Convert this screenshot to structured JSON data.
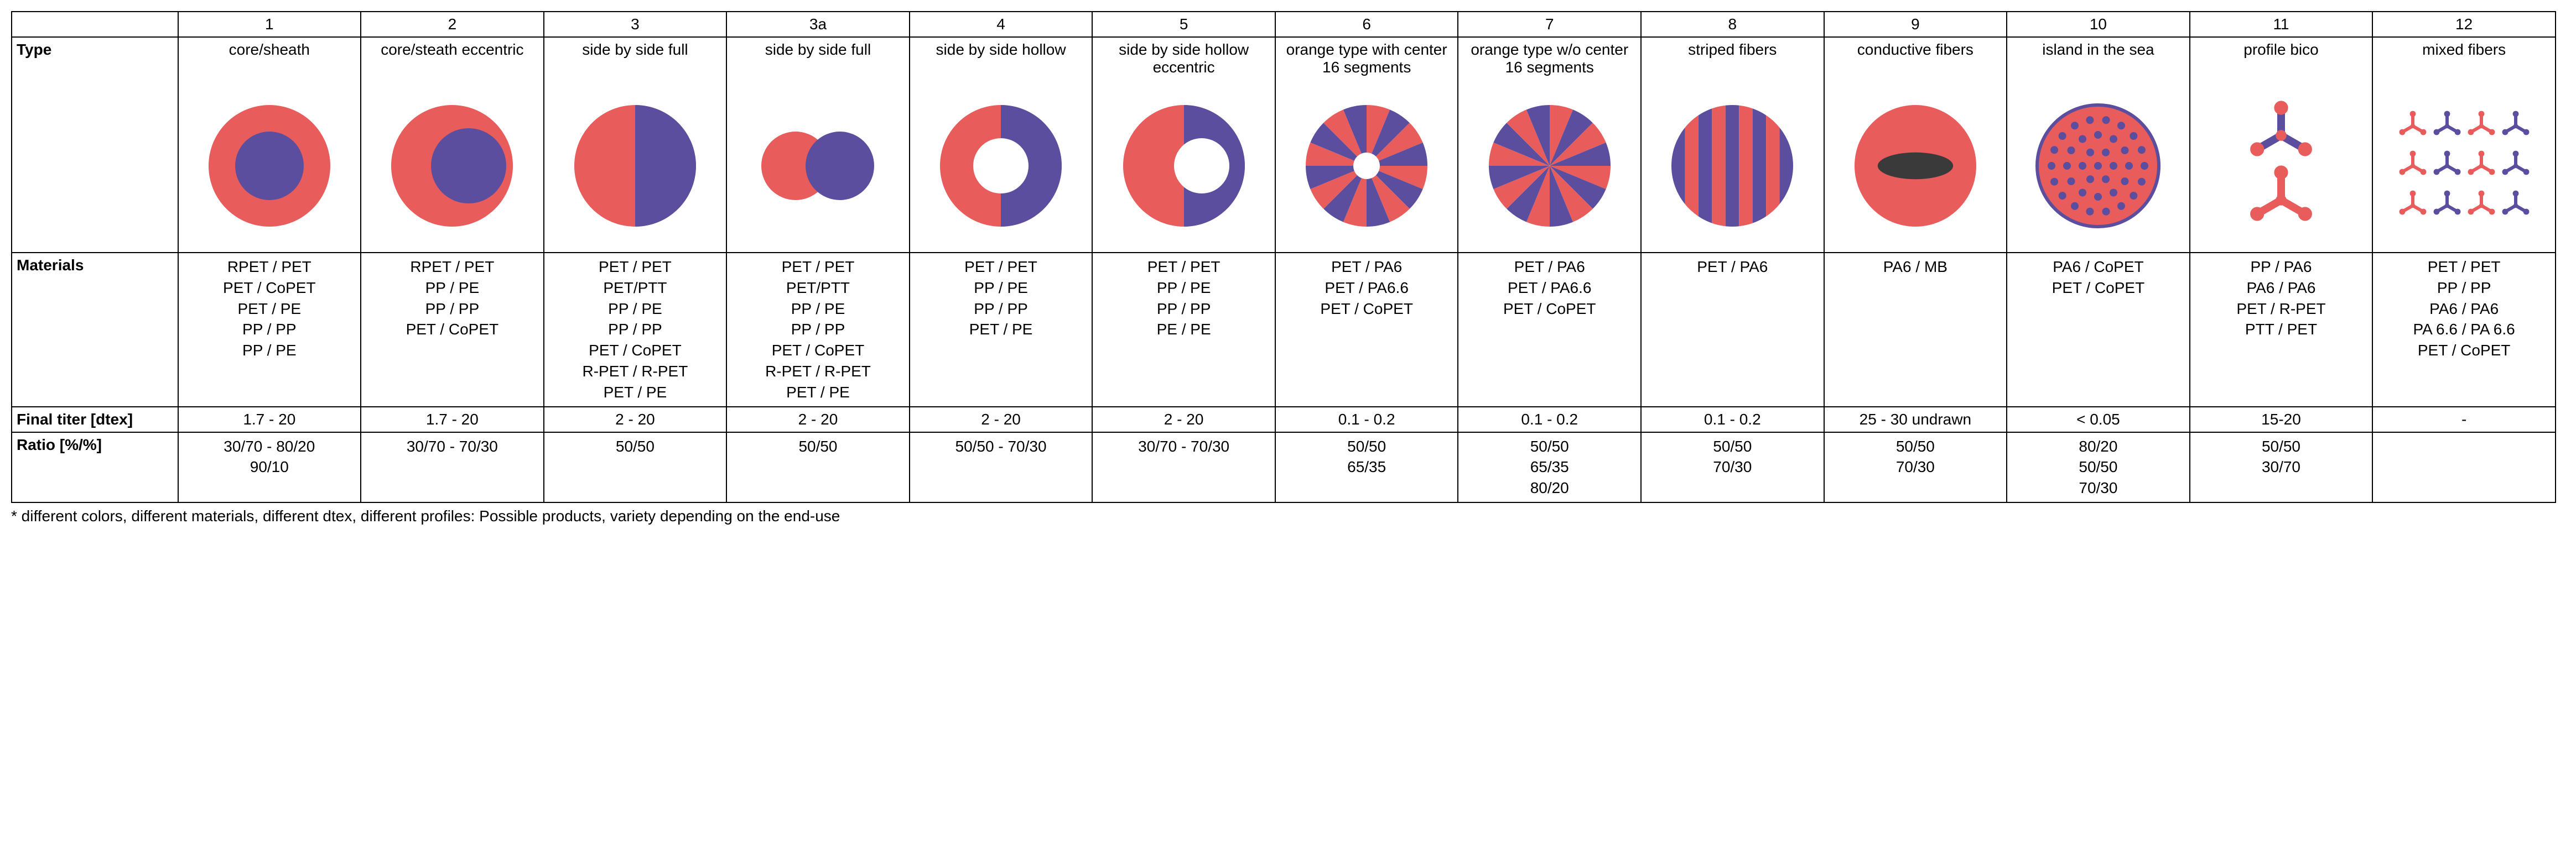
{
  "colors": {
    "red": "#e85c5c",
    "blue": "#5b4e9e",
    "dark": "#3a3a3a",
    "white": "#ffffff",
    "border": "#000000"
  },
  "row_labels": {
    "type": "Type",
    "materials": "Materials",
    "titer": "Final titer [dtex]",
    "ratio": "Ratio [%/%]"
  },
  "footnote": "* different colors, different materials, different dtex, different profiles: Possible products, variety depending on the end-use",
  "columns": [
    {
      "num": "1",
      "type": "core/sheath",
      "icon": "core_sheath",
      "materials": [
        "RPET / PET",
        "PET / CoPET",
        "PET / PE",
        "PP / PP",
        "PP / PE"
      ],
      "titer": "1.7 - 20",
      "ratio": [
        "30/70 - 80/20",
        "90/10"
      ]
    },
    {
      "num": "2",
      "type": "core/steath eccentric",
      "icon": "core_sheath_ecc",
      "materials": [
        "RPET / PET",
        "PP / PE",
        "PP / PP",
        "PET / CoPET"
      ],
      "titer": "1.7 - 20",
      "ratio": [
        "30/70 - 70/30"
      ]
    },
    {
      "num": "3",
      "type": "side by side full",
      "icon": "sbs_full",
      "materials": [
        "PET / PET",
        "PET/PTT",
        "PP / PE",
        "PP / PP",
        "PET / CoPET",
        "R-PET / R-PET",
        "PET / PE"
      ],
      "titer": "2 - 20",
      "ratio": [
        "50/50"
      ]
    },
    {
      "num": "3a",
      "type": "side by side full",
      "icon": "sbs_full_small",
      "materials": [
        "PET / PET",
        "PET/PTT",
        "PP / PE",
        "PP / PP",
        "PET / CoPET",
        "R-PET / R-PET",
        "PET / PE"
      ],
      "titer": "2 - 20",
      "ratio": [
        "50/50"
      ]
    },
    {
      "num": "4",
      "type": "side by side hollow",
      "icon": "sbs_hollow",
      "materials": [
        "PET / PET",
        "PP / PE",
        "PP / PP",
        "PET / PE"
      ],
      "titer": "2 - 20",
      "ratio": [
        "50/50 - 70/30"
      ]
    },
    {
      "num": "5",
      "type": "side by side hollow eccentric",
      "icon": "sbs_hollow_ecc",
      "materials": [
        "PET / PET",
        "PP / PE",
        "PP / PP",
        "PE / PE"
      ],
      "titer": "2 - 20",
      "ratio": [
        "30/70 - 70/30"
      ]
    },
    {
      "num": "6",
      "type": "orange type with center 16 segments",
      "icon": "orange_center",
      "materials": [
        "PET / PA6",
        "PET / PA6.6",
        "PET / CoPET"
      ],
      "titer": "0.1 - 0.2",
      "ratio": [
        "50/50",
        "65/35"
      ]
    },
    {
      "num": "7",
      "type": "orange type w/o center 16 segments",
      "icon": "orange_nocenter",
      "materials": [
        "PET / PA6",
        "PET / PA6.6",
        "PET / CoPET"
      ],
      "titer": "0.1 - 0.2",
      "ratio": [
        "50/50",
        "65/35",
        "80/20"
      ]
    },
    {
      "num": "8",
      "type": "striped fibers",
      "icon": "striped",
      "materials": [
        "PET / PA6"
      ],
      "titer": "0.1 - 0.2",
      "ratio": [
        "50/50",
        "70/30"
      ]
    },
    {
      "num": "9",
      "type": "conductive fibers",
      "icon": "conductive",
      "materials": [
        "PA6 / MB"
      ],
      "titer": "25 - 30 undrawn",
      "ratio": [
        "50/50",
        "70/30"
      ]
    },
    {
      "num": "10",
      "type": "island in the sea",
      "icon": "island",
      "materials": [
        "PA6 / CoPET",
        "PET / CoPET"
      ],
      "titer": "< 0.05",
      "ratio": [
        "80/20",
        "50/50",
        "70/30"
      ]
    },
    {
      "num": "11",
      "type": "profile bico",
      "icon": "profile",
      "materials": [
        "PP / PA6",
        "PA6 / PA6",
        "PET / R-PET",
        "PTT / PET"
      ],
      "titer": "15-20",
      "ratio": [
        "50/50",
        "30/70"
      ]
    },
    {
      "num": "12",
      "type": "mixed fibers",
      "icon": "mixed",
      "materials": [
        "PET / PET",
        "PP / PP",
        "PA6 / PA6",
        "PA 6.6 / PA 6.6",
        "PET / CoPET"
      ],
      "titer": "-",
      "ratio": []
    }
  ],
  "icon_style": {
    "svg_size": 260,
    "circle_r": 110,
    "inner_r": 62,
    "hollow_r": 50,
    "segment_count": 16,
    "stripe_count": 9,
    "island_dot_r": 7,
    "island_rings": [
      0,
      28,
      56,
      84
    ],
    "island_ring_counts": [
      1,
      6,
      12,
      18
    ]
  }
}
